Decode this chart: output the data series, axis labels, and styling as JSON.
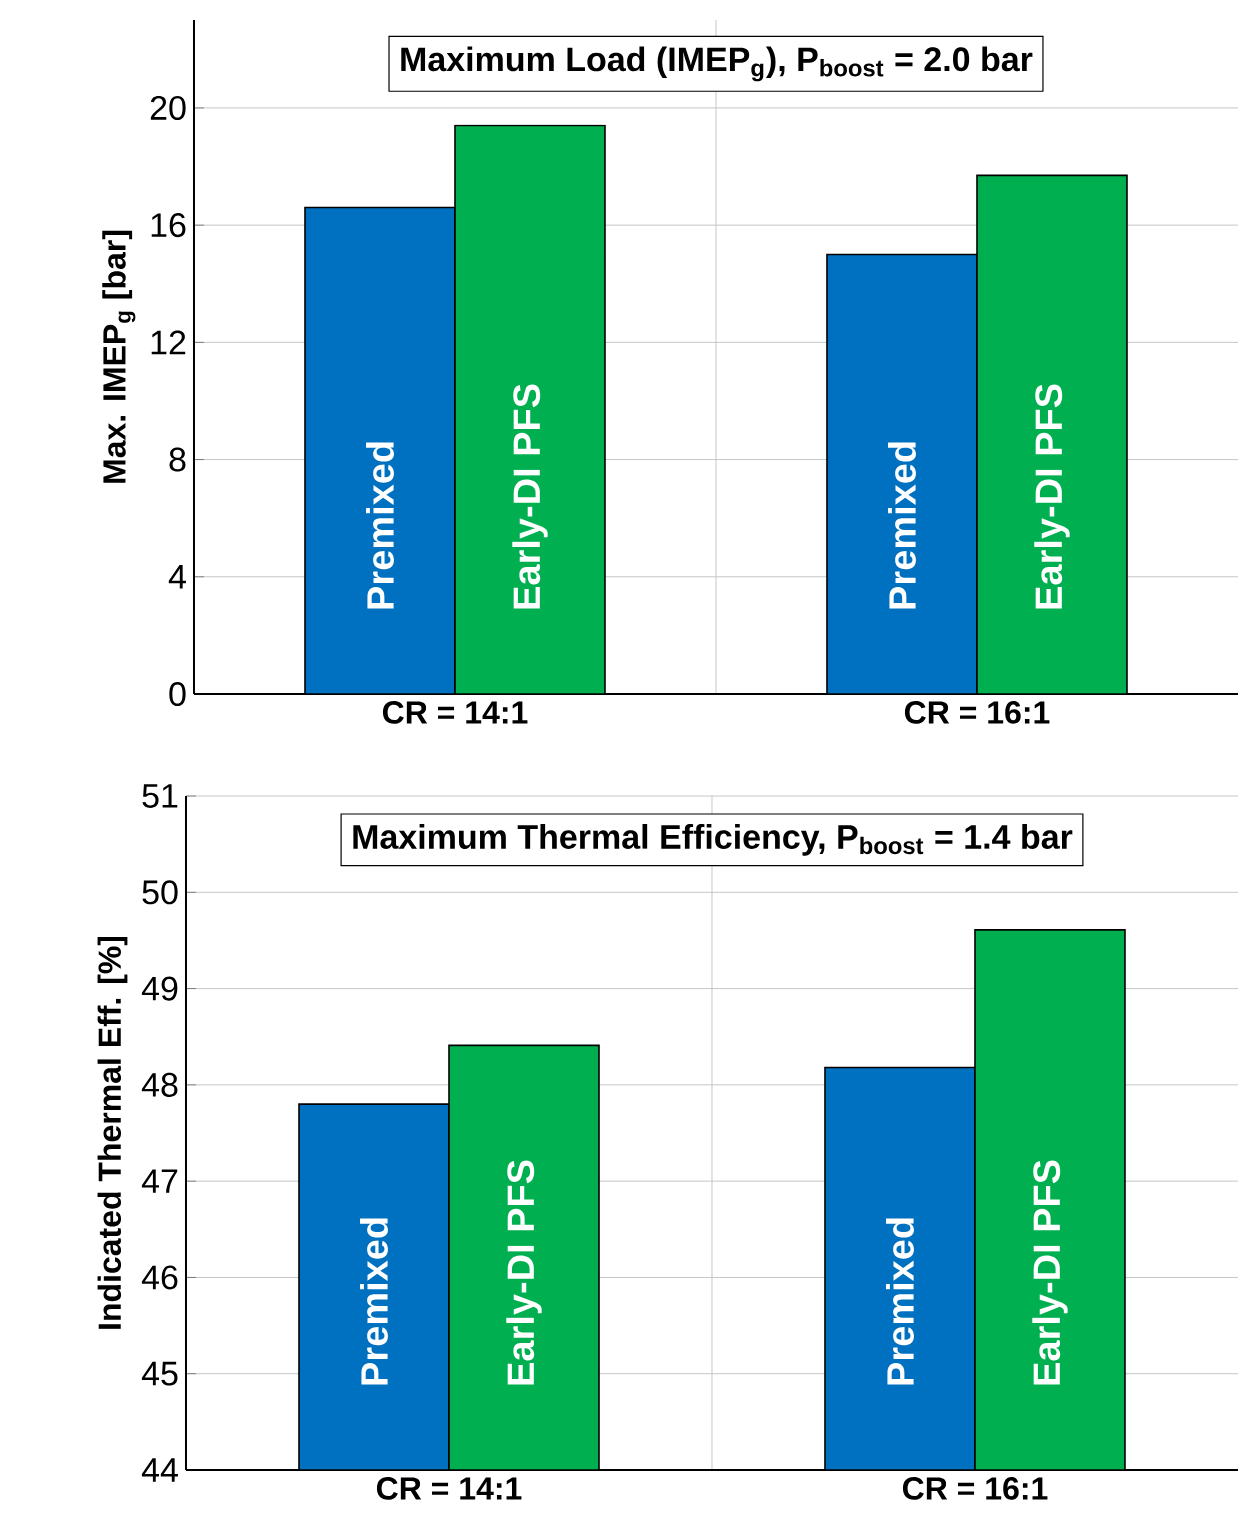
{
  "chart_data": [
    {
      "type": "bar",
      "title": "Maximum Load (IMEP$_{g}$), P$_{boost}$ = 2.0 bar",
      "ylabel": "Max. IMEP$_{g}$ [bar]",
      "categories": [
        "CR = 14:1",
        "CR = 16:1"
      ],
      "series": [
        {
          "name": "Premixed",
          "color": "#0070c0",
          "values": [
            16.6,
            15.0
          ]
        },
        {
          "name": "Early-DI PFS",
          "color": "#00b050",
          "values": [
            19.4,
            17.7
          ]
        }
      ],
      "ylim": [
        0,
        23
      ],
      "yticks": [
        0,
        4,
        8,
        12,
        16,
        20
      ],
      "grid": true,
      "legend": false
    },
    {
      "type": "bar",
      "title": "Maximum Thermal Efficiency, P$_{boost}$ = 1.4 bar",
      "ylabel": "Indicated Thermal Eff. [%]",
      "categories": [
        "CR = 14:1",
        "CR = 16:1"
      ],
      "series": [
        {
          "name": "Premixed",
          "color": "#0070c0",
          "values": [
            47.8,
            48.18
          ]
        },
        {
          "name": "Early-DI PFS",
          "color": "#00b050",
          "values": [
            48.41,
            49.61
          ]
        }
      ],
      "ylim": [
        44,
        51
      ],
      "yticks": [
        44,
        45,
        46,
        47,
        48,
        49,
        50,
        51
      ],
      "grid": true,
      "legend": false
    }
  ]
}
